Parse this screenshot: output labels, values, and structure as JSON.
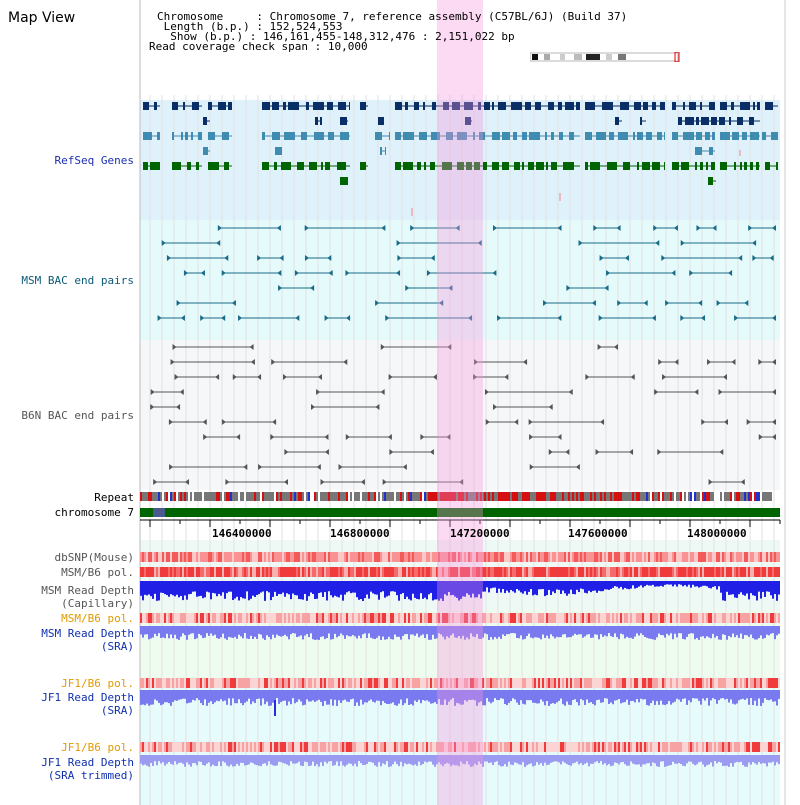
{
  "title": "Map View",
  "info": {
    "chromosome_key": "Chromosome",
    "chromosome_val": "Chromosome 7, reference assembly (C57BL/6J) (Build 37)",
    "length_key": "Length (b.p.)",
    "length_val": "152,524,553",
    "show_key": "Show (b.p.)",
    "show_val": "146,161,455-148,312,476 : 2,151,022 bp",
    "coverage_key": "Read coverage check span",
    "coverage_val": "10,000"
  },
  "tracks": {
    "refseq": "RefSeq Genes",
    "msm_bac": "MSM BAC end pairs",
    "b6n_bac": "B6N BAC end pairs",
    "repeat": "Repeat",
    "chromosome": "chromosome 7",
    "dbsnp": "dbSNP(Mouse)",
    "msm_b6_pol_1": "MSM/B6 pol.",
    "msm_depth_cap_1": "MSM Read Depth",
    "msm_depth_cap_2": "(Capillary)",
    "msm_b6_pol_2": "MSM/B6 pol.",
    "msm_depth_sra_1": "MSM Read Depth",
    "msm_depth_sra_2": "(SRA)",
    "jf1_b6_pol_1": "JF1/B6 pol.",
    "jf1_depth_sra_1": "JF1 Read Depth",
    "jf1_depth_sra_2": "(SRA)",
    "jf1_b6_pol_2": "JF1/B6 pol.",
    "jf1_depth_trim_1": "JF1 Read Depth",
    "jf1_depth_trim_2": "(SRA trimmed)"
  },
  "axis": {
    "ticks": [
      "146400000",
      "146800000",
      "147200000",
      "147600000",
      "148000000"
    ]
  },
  "colors": {
    "refseq_bg": "#dff1fb",
    "msm_bg": "#e5fbfb",
    "b6n_bg": "#f6f7f9",
    "chromosome": "#006400",
    "highlight": "#f7c6ec",
    "gene_dark": "#0a2f66",
    "gene_mid": "#3f8cb0",
    "gene_green": "#006400",
    "bac_teal": "#1a6a88",
    "bac_gray": "#555555",
    "depth_blue": "#1f1fe6",
    "depth_light": "#7a7af0"
  }
}
